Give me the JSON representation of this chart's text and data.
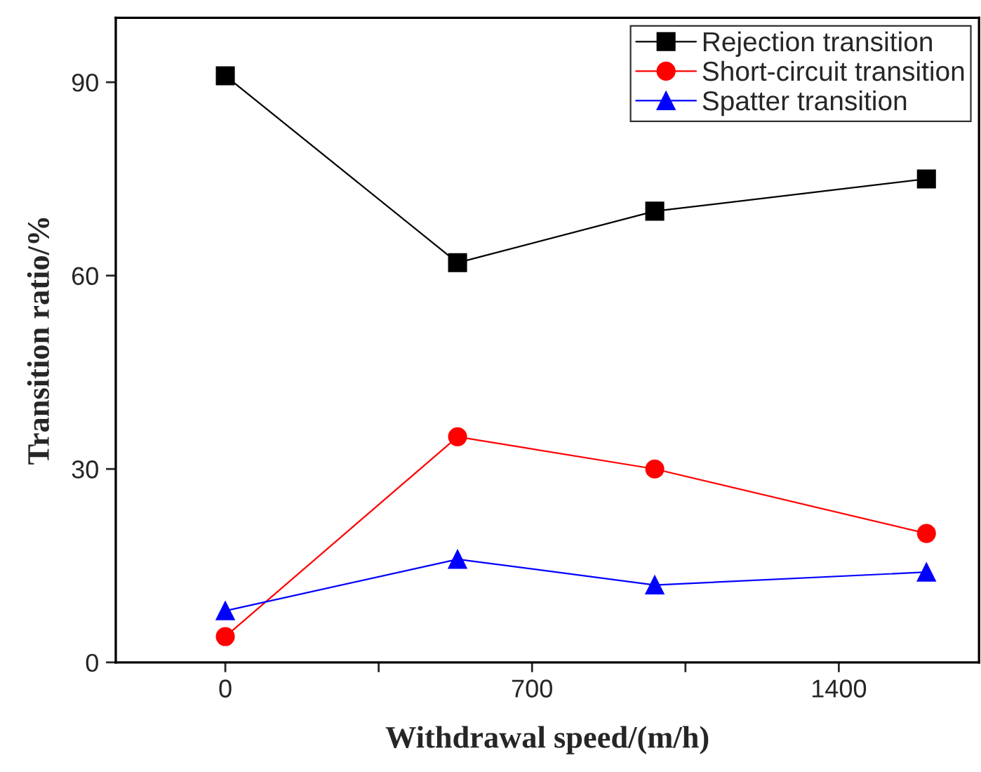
{
  "chart_data": {
    "type": "line",
    "xlabel": "Withdrawal speed/(m/h)",
    "ylabel": "Transition ratio/%",
    "x": [
      0,
      530,
      980,
      1600
    ],
    "series": [
      {
        "name": "Rejection transition",
        "color": "#000000",
        "marker": "square",
        "values": [
          91,
          62,
          70,
          75
        ]
      },
      {
        "name": "Short-circuit transition",
        "color": "#ff0000",
        "marker": "circle",
        "values": [
          4,
          35,
          30,
          20
        ]
      },
      {
        "name": "Spatter transition",
        "color": "#0000ff",
        "marker": "triangle",
        "values": [
          8,
          16,
          12,
          14
        ]
      }
    ],
    "xlim": [
      -250,
      1720
    ],
    "ylim": [
      0,
      100
    ],
    "xticks": [
      0,
      {
        "value": 350,
        "label": null
      },
      700,
      {
        "value": 1050,
        "label": null
      },
      1400
    ],
    "yticks": [
      0,
      30,
      60,
      90
    ],
    "grid": false,
    "legend": "top right",
    "line_style": "solid"
  }
}
